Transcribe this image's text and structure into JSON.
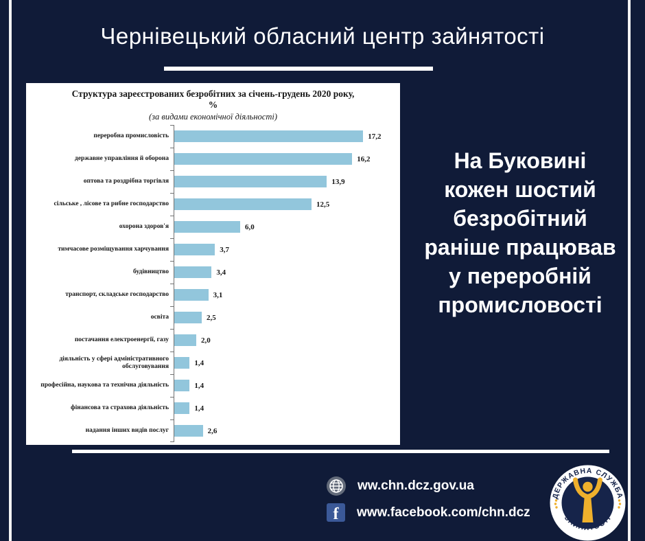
{
  "header": {
    "title": "Чернівецький обласний центр зайнятості"
  },
  "chart_data": {
    "type": "bar",
    "orientation": "horizontal",
    "title": "Структура зареєстрованих безробітних за січень-грудень 2020 року, %",
    "title_lines": [
      "Структура зареєстрованих безробітних за січень-грудень 2020  року,",
      "%"
    ],
    "subtitle": "(за видами економічної діяльності)",
    "categories": [
      "переробна промисловість",
      "державне управління й оборона",
      "оптова та роздрібна торгівля",
      "сільське , лісове  та рибне господарство",
      "охорона здоров'я",
      "тимчасове розміщування  харчування",
      "будівництво",
      "транспорт, складське господарство",
      "освіта",
      "постачання електроенергії, газу",
      "діяльність  у сфері адміністративного обслуговування",
      "професійна, наукова та технічна діяльність",
      "фінансова та страхова діяльність",
      "надання інших  видів послуг"
    ],
    "values": [
      17.2,
      16.2,
      13.9,
      12.5,
      6.0,
      3.7,
      3.4,
      3.1,
      2.5,
      2.0,
      1.4,
      1.4,
      1.4,
      2.6
    ],
    "value_labels": [
      "17,2",
      "16,2",
      "13,9",
      "12,5",
      "6,0",
      "3,7",
      "3,4",
      "3,1",
      "2,5",
      "2,0",
      "1,4",
      "1,4",
      "1,4",
      "2,6"
    ],
    "xlim": [
      0,
      18
    ],
    "bar_color": "#92c6dc",
    "grid": "off",
    "legend": "none"
  },
  "headline": {
    "text": "На Буковині кожен шостий безробітний раніше працював у переробній промисловості",
    "lines": [
      "На Буковині",
      "кожен шостий",
      "безробітний",
      "раніше працював",
      "у  переробній",
      "промисловості"
    ]
  },
  "footer": {
    "website": "ww.chn.dcz.gov.ua",
    "facebook": "www.facebook.com/chn.dcz",
    "facebook_icon_glyph": "f"
  },
  "logo": {
    "arc_top": "ДЕРЖАВНА СЛУЖБА",
    "arc_bottom": "ЗАЙНЯТОСТІ"
  },
  "colors": {
    "background": "#101b38",
    "bar": "#92c6dc",
    "facebook_blue": "#3b5998",
    "globe_gray": "#636b7a",
    "logo_navy": "#16244a",
    "logo_gold": "#efb02c"
  }
}
